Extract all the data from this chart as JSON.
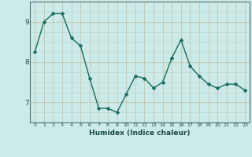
{
  "x": [
    0,
    1,
    2,
    3,
    4,
    5,
    6,
    7,
    8,
    9,
    10,
    11,
    12,
    13,
    14,
    15,
    16,
    17,
    18,
    19,
    20,
    21,
    22,
    23
  ],
  "y": [
    8.25,
    9.0,
    9.2,
    9.2,
    8.6,
    8.4,
    7.6,
    6.85,
    6.85,
    6.75,
    7.2,
    7.65,
    7.6,
    7.35,
    7.5,
    8.1,
    8.55,
    7.9,
    7.65,
    7.45,
    7.35,
    7.45,
    7.45,
    7.3
  ],
  "line_color": "#1a6b5a",
  "marker": "D",
  "marker_size": 2.5,
  "bg_color": "#cceae8",
  "grid_color_minor": "#b8d8d6",
  "grid_color_major": "#c0c0a8",
  "xlabel": "Humidex (Indice chaleur)",
  "xlim": [
    -0.5,
    23.5
  ],
  "ylim": [
    6.5,
    9.5
  ],
  "yticks": [
    7,
    8,
    9
  ],
  "xticks": [
    0,
    1,
    2,
    3,
    4,
    5,
    6,
    7,
    8,
    9,
    10,
    11,
    12,
    13,
    14,
    15,
    16,
    17,
    18,
    19,
    20,
    21,
    22,
    23
  ]
}
